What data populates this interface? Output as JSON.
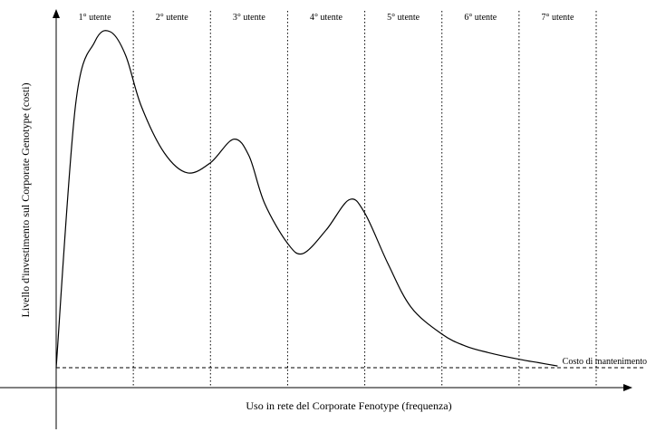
{
  "chart_data": {
    "type": "line",
    "title": "",
    "xlabel": "Uso in rete del Corporate Fenotype (frequenza)",
    "ylabel": "Livello d'investimento sul Corporate Genotype (costi)",
    "x_ticks": false,
    "y_ticks": false,
    "grid": false,
    "legend": "none",
    "xlim": [
      0,
      7
    ],
    "ylim": [
      0,
      100
    ],
    "segments": [
      "1° utente",
      "2° utente",
      "3° utente",
      "4° utente",
      "5° utente",
      "6° utente",
      "7° utente"
    ],
    "segment_boundaries": [
      1,
      2,
      3,
      4,
      5,
      6,
      7
    ],
    "series": [
      {
        "x": [
          0,
          0.25,
          0.5,
          0.7,
          0.9,
          1.1,
          1.4,
          1.7,
          2.0,
          2.3,
          2.5,
          2.7,
          3.0,
          3.2,
          3.5,
          3.8,
          4.0,
          4.3,
          4.6,
          5.0,
          5.3,
          5.6,
          6.0,
          6.25,
          6.5
        ],
        "y": [
          0,
          78,
          97,
          100,
          93,
          78,
          64,
          58,
          61,
          68,
          63,
          49,
          37,
          34,
          41,
          50,
          46,
          31,
          18,
          10,
          6.5,
          4.5,
          2.5,
          1.5,
          0.5
        ]
      }
    ],
    "reference_line": {
      "y": 0,
      "label": "Costo di mantenimento",
      "style": "dashed"
    },
    "colors": {
      "line": "#000000",
      "background": "#ffffff"
    }
  }
}
